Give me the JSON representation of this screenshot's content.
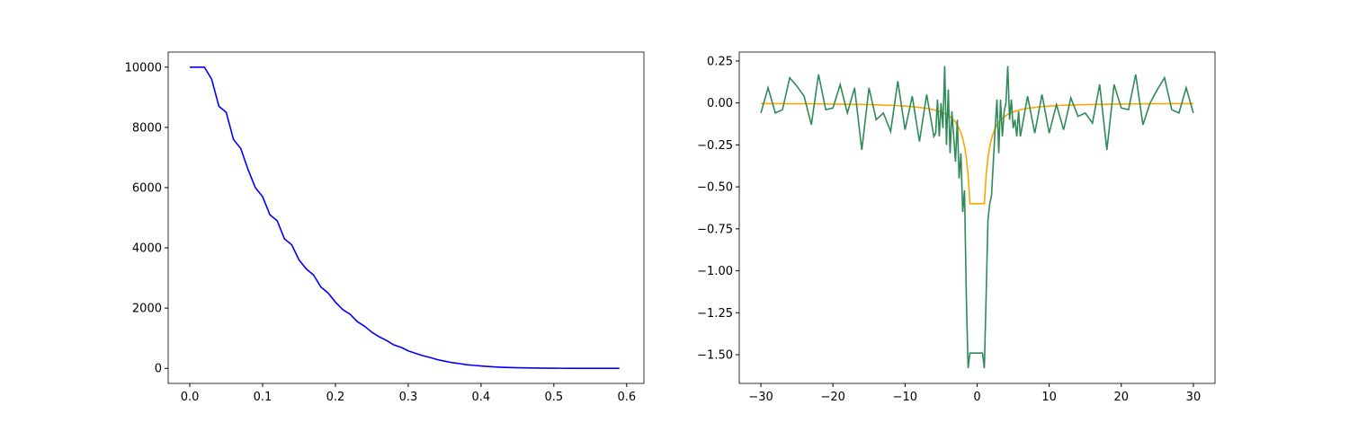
{
  "chart_data": [
    {
      "type": "line",
      "x": [
        0,
        0.01,
        0.02,
        0.03,
        0.04,
        0.05,
        0.06,
        0.07,
        0.08,
        0.09,
        0.1,
        0.11,
        0.12,
        0.13,
        0.14,
        0.15,
        0.16,
        0.17,
        0.18,
        0.19,
        0.2,
        0.21,
        0.22,
        0.23,
        0.24,
        0.25,
        0.26,
        0.27,
        0.28,
        0.29,
        0.3,
        0.31,
        0.32,
        0.33,
        0.34,
        0.35,
        0.36,
        0.37,
        0.38,
        0.39,
        0.4,
        0.41,
        0.42,
        0.43,
        0.44,
        0.45,
        0.46,
        0.47,
        0.48,
        0.49,
        0.5,
        0.51,
        0.52,
        0.53,
        0.54,
        0.55,
        0.56,
        0.57,
        0.58,
        0.59
      ],
      "series": [
        {
          "color": "#0000ff",
          "values": [
            10000,
            10000,
            10000,
            9600,
            8700,
            8500,
            7600,
            7300,
            6600,
            6000,
            5700,
            5100,
            4900,
            4300,
            4100,
            3600,
            3300,
            3100,
            2700,
            2500,
            2200,
            1950,
            1800,
            1550,
            1400,
            1200,
            1050,
            930,
            780,
            700,
            580,
            500,
            420,
            360,
            290,
            240,
            190,
            160,
            120,
            100,
            80,
            60,
            45,
            35,
            27,
            20,
            15,
            11,
            8,
            6,
            4,
            3,
            2,
            1.5,
            1,
            0.7,
            0.5,
            0.3,
            0.2,
            0.1
          ]
        }
      ],
      "xlim": [
        -0.0297,
        0.6237
      ],
      "xticks": [
        {
          "value": 0,
          "label": "0.0"
        },
        {
          "value": 0.1,
          "label": "0.1"
        },
        {
          "value": 0.2,
          "label": "0.2"
        },
        {
          "value": 0.3,
          "label": "0.3"
        },
        {
          "value": 0.4,
          "label": "0.4"
        },
        {
          "value": 0.5,
          "label": "0.5"
        },
        {
          "value": 0.6,
          "label": "0.6"
        }
      ],
      "ylim": [
        -500,
        10500
      ],
      "yticks": [
        0,
        2000,
        4000,
        6000,
        8000,
        10000
      ]
    },
    {
      "type": "line",
      "x": [
        -30,
        -29,
        -28,
        -27,
        -26,
        -25,
        -24,
        -23,
        -22,
        -21,
        -20,
        -19,
        -18,
        -17,
        -16,
        -15,
        -14,
        -13,
        -12,
        -11,
        -10,
        -9,
        -8,
        -7,
        -6,
        -5.75,
        -5.5,
        -5.25,
        -5,
        -4.75,
        -4.5,
        -4.25,
        -4,
        -3.75,
        -3.5,
        -3.25,
        -3,
        -2.75,
        -2.5,
        -2.25,
        -2,
        -1.75,
        -1.5,
        -1.25,
        -1,
        -0.75,
        -0.5,
        -0.25,
        0,
        0.25,
        0.5,
        0.75,
        1,
        1.25,
        1.5,
        1.75,
        2,
        2.25,
        2.5,
        2.75,
        3,
        3.25,
        3.5,
        3.75,
        4,
        4.25,
        4.5,
        4.75,
        5,
        5.25,
        5.5,
        5.75,
        6,
        7,
        8,
        9,
        10,
        11,
        12,
        13,
        14,
        15,
        16,
        17,
        18,
        19,
        20,
        21,
        22,
        23,
        24,
        25,
        26,
        27,
        28,
        29,
        30
      ],
      "series": [
        {
          "color": "#ffa500",
          "values": [
            -0.004,
            -0.004,
            -0.004,
            -0.004,
            -0.005,
            -0.005,
            -0.005,
            -0.005,
            -0.006,
            -0.006,
            -0.007,
            -0.007,
            -0.008,
            -0.009,
            -0.009,
            -0.01,
            -0.011,
            -0.013,
            -0.014,
            -0.016,
            -0.019,
            -0.022,
            -0.027,
            -0.032,
            -0.041,
            -0.044,
            -0.047,
            -0.05,
            -0.054,
            -0.058,
            -0.063,
            -0.068,
            -0.075,
            -0.083,
            -0.092,
            -0.102,
            -0.115,
            -0.132,
            -0.152,
            -0.178,
            -0.212,
            -0.259,
            -0.327,
            -0.429,
            -0.6,
            -0.6,
            -0.6,
            -0.6,
            -0.6,
            -0.6,
            -0.6,
            -0.6,
            -0.6,
            -0.429,
            -0.327,
            -0.259,
            -0.212,
            -0.178,
            -0.152,
            -0.132,
            -0.115,
            -0.102,
            -0.092,
            -0.083,
            -0.075,
            -0.068,
            -0.063,
            -0.058,
            -0.054,
            -0.05,
            -0.047,
            -0.044,
            -0.041,
            -0.032,
            -0.027,
            -0.022,
            -0.019,
            -0.016,
            -0.014,
            -0.013,
            -0.011,
            -0.01,
            -0.009,
            -0.009,
            -0.008,
            -0.007,
            -0.007,
            -0.006,
            -0.006,
            -0.005,
            -0.005,
            -0.005,
            -0.005,
            -0.004,
            -0.004,
            -0.004,
            -0.004
          ]
        },
        {
          "color": "#2e8b57",
          "values": [
            -0.06,
            0.09,
            -0.06,
            -0.04,
            0.15,
            0.1,
            0.04,
            -0.13,
            0.17,
            -0.04,
            -0.03,
            0.11,
            -0.06,
            0.09,
            -0.28,
            0.09,
            -0.1,
            -0.06,
            -0.17,
            0.13,
            -0.16,
            0.04,
            -0.23,
            0.05,
            -0.2,
            -0.18,
            0.02,
            -0.2,
            0.0,
            -0.15,
            0.22,
            -0.25,
            0.08,
            -0.3,
            -0.05,
            -0.2,
            -0.35,
            -0.1,
            -0.45,
            -0.3,
            -0.65,
            -0.52,
            -1.15,
            -1.58,
            -1.49,
            -1.49,
            -1.49,
            -1.49,
            -1.49,
            -1.49,
            -1.49,
            -1.49,
            -1.58,
            -1.15,
            -0.7,
            -0.6,
            -0.55,
            -0.35,
            -0.15,
            0.02,
            -0.3,
            0.02,
            -0.2,
            -0.05,
            0.0,
            0.22,
            -0.1,
            0.02,
            -0.15,
            -0.1,
            -0.2,
            -0.05,
            -0.2,
            0.04,
            -0.18,
            0.05,
            -0.18,
            -0.01,
            -0.16,
            0.03,
            -0.08,
            -0.06,
            -0.12,
            0.11,
            -0.28,
            0.11,
            -0.03,
            -0.04,
            0.17,
            -0.13,
            0.0,
            0.08,
            0.15,
            -0.04,
            -0.06,
            0.09,
            -0.06
          ]
        }
      ],
      "xlim": [
        -33,
        33
      ],
      "xticks": [
        {
          "value": -30,
          "label": "−30"
        },
        {
          "value": -20,
          "label": "−20"
        },
        {
          "value": -10,
          "label": "−10"
        },
        0,
        10,
        20,
        30
      ],
      "ylim": [
        -1.671,
        0.303
      ],
      "yticks": [
        {
          "value": -1.5,
          "label": "−1.50"
        },
        {
          "value": -1.25,
          "label": "−1.25"
        },
        {
          "value": -1,
          "label": "−1.00"
        },
        {
          "value": -0.75,
          "label": "−0.75"
        },
        {
          "value": -0.5,
          "label": "−0.50"
        },
        {
          "value": -0.25,
          "label": "−0.25"
        },
        {
          "value": 0,
          "label": "0.00"
        },
        {
          "value": 0.25,
          "label": "0.25"
        }
      ]
    }
  ]
}
